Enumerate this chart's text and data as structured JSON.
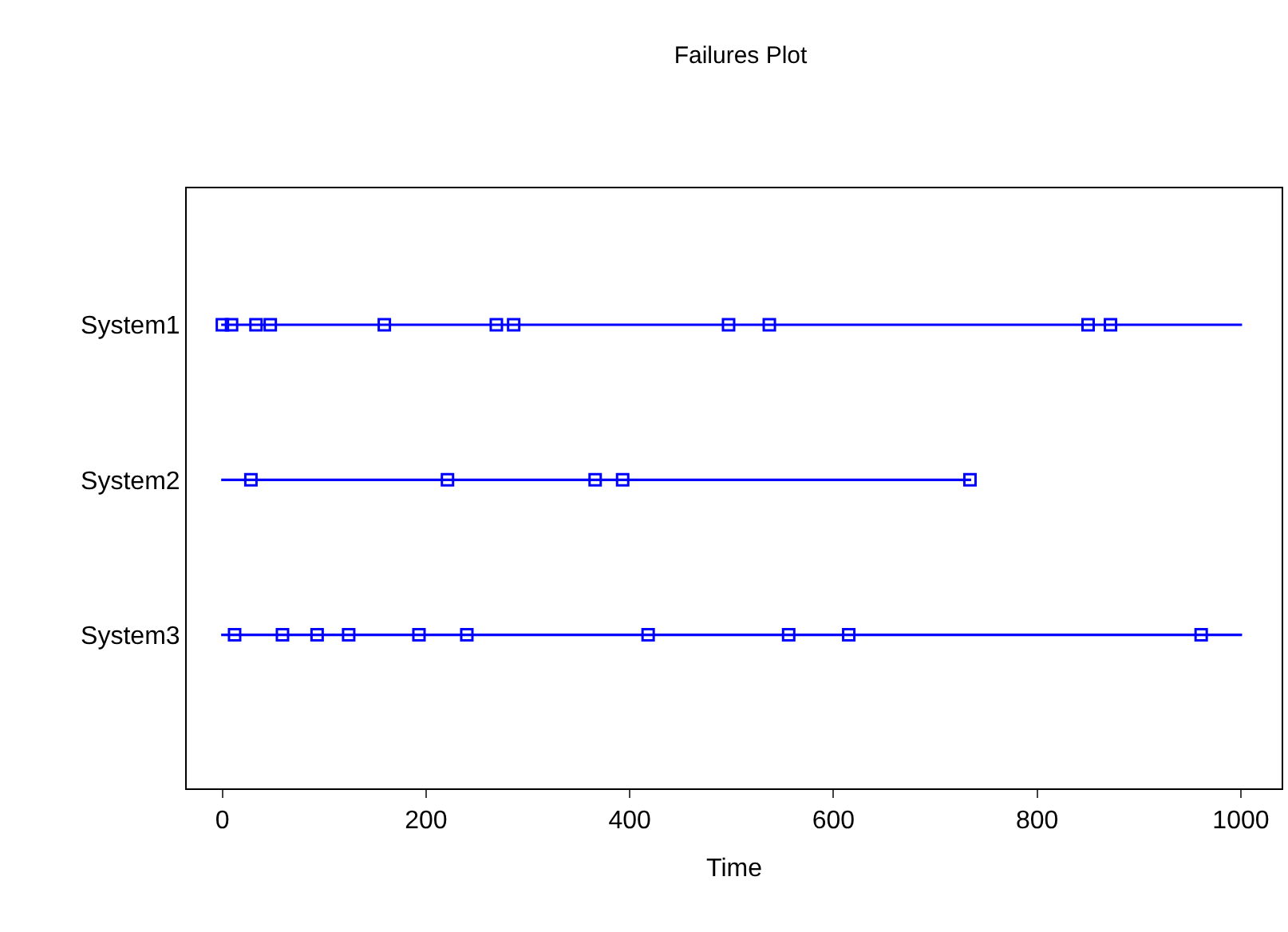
{
  "chart_data": {
    "type": "scatter",
    "title": "Failures Plot",
    "xlabel": "Time",
    "orientation": "horizontal",
    "categories": [
      "System1",
      "System2",
      "System3"
    ],
    "xlim": [
      -35,
      1040
    ],
    "xticks": [
      0,
      200,
      400,
      600,
      800,
      1000
    ],
    "marker": "square",
    "series": [
      {
        "type": "bar",
        "color": "#0000ff",
        "values": [
          1000,
          734,
          1000
        ]
      },
      {
        "color": "#0000ff",
        "values": [
          0,
          28,
          12
        ]
      },
      {
        "color": "#0000ff",
        "values": [
          9,
          221,
          59
        ]
      },
      {
        "color": "#0000ff",
        "values": [
          33,
          366,
          93
        ]
      },
      {
        "color": "#0000ff",
        "values": [
          47,
          393,
          124
        ]
      },
      {
        "color": "#0000ff",
        "values": [
          159,
          734,
          193
        ]
      },
      {
        "color": "#0000ff",
        "values": [
          269,
          null,
          240
        ]
      },
      {
        "color": "#0000ff",
        "values": [
          286,
          null,
          418
        ]
      },
      {
        "color": "#0000ff",
        "values": [
          497,
          null,
          556
        ]
      },
      {
        "color": "#0000ff",
        "values": [
          537,
          null,
          615
        ]
      },
      {
        "color": "#0000ff",
        "values": [
          850,
          null,
          961
        ]
      },
      {
        "color": "#0000ff",
        "values": [
          872,
          null,
          null
        ]
      }
    ]
  }
}
